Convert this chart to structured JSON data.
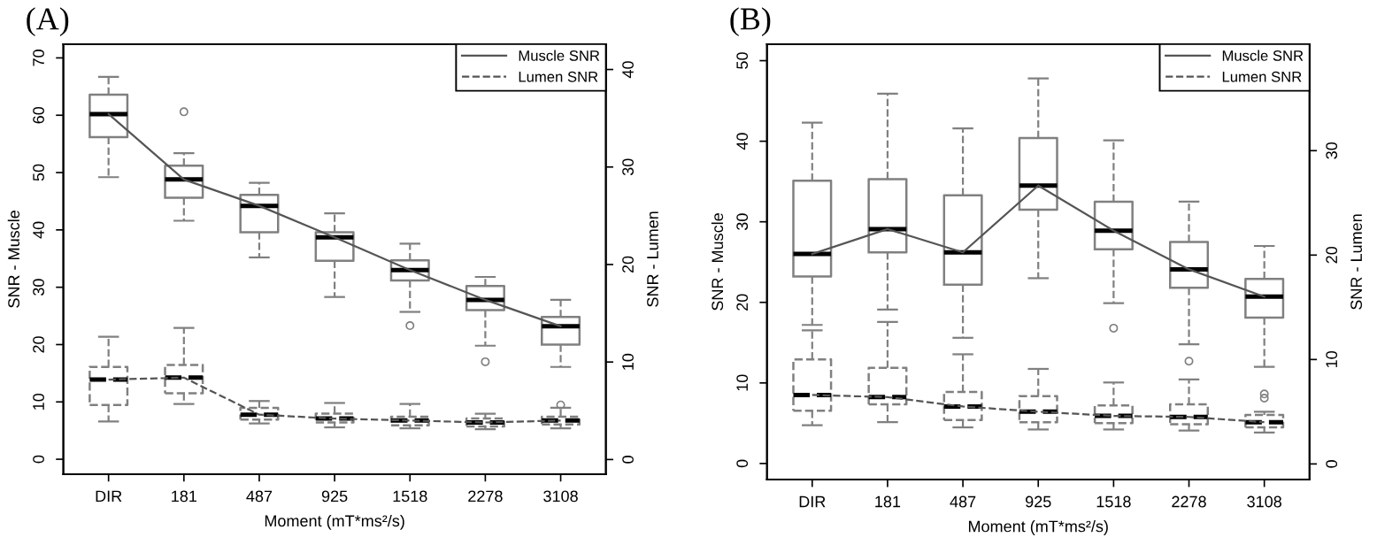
{
  "chart_data": [
    {
      "type": "box",
      "title": "(A)",
      "xlabel": "Moment (mT*ms²/s)",
      "ylabel": "SNR - Muscle",
      "y2label": "SNR - Lumen",
      "categories": [
        "DIR",
        "181",
        "487",
        "925",
        "1518",
        "2278",
        "3108"
      ],
      "ylim": [
        -2.6,
        72.4
      ],
      "yticks": [
        0,
        10,
        20,
        30,
        40,
        50,
        60,
        70
      ],
      "y2lim": [
        -1.5,
        42.6
      ],
      "y2ticks": [
        0,
        10,
        20,
        30,
        40
      ],
      "legend": "top right",
      "grid": false,
      "series": [
        {
          "color": "#808080",
          "line_style": "solid",
          "boxes": [
            {
              "low": 49.2,
              "q1": 56.2,
              "median": 60.2,
              "q3": 63.6,
              "high": 66.7
            },
            {
              "low": 41.6,
              "q1": 45.6,
              "median": 48.8,
              "q3": 51.2,
              "high": 53.4,
              "outliers": [
                60.6
              ]
            },
            {
              "low": 35.2,
              "q1": 39.6,
              "median": 44.2,
              "q3": 46.1,
              "high": 48.2
            },
            {
              "low": 28.3,
              "q1": 34.6,
              "median": 38.7,
              "q3": 39.6,
              "high": 42.9
            },
            {
              "low": 25.7,
              "q1": 31.2,
              "median": 33.0,
              "q3": 34.7,
              "high": 37.6,
              "outliers": [
                23.3
              ]
            },
            {
              "low": 19.8,
              "q1": 26.0,
              "median": 27.8,
              "q3": 30.2,
              "high": 31.8,
              "outliers": [
                17.0
              ]
            },
            {
              "low": 16.1,
              "q1": 20.0,
              "median": 23.2,
              "q3": 24.8,
              "high": 27.8
            }
          ]
        },
        {
          "axis": "y2",
          "color": "#808080",
          "line_style": "dashed",
          "boxes": [
            {
              "low": 3.9,
              "q1": 5.6,
              "median": 8.2,
              "q3": 9.5,
              "high": 12.6
            },
            {
              "low": 5.7,
              "q1": 6.8,
              "median": 8.4,
              "q3": 9.7,
              "high": 13.5
            },
            {
              "low": 3.7,
              "q1": 4.1,
              "median": 4.6,
              "q3": 5.3,
              "high": 6.0
            },
            {
              "low": 3.3,
              "q1": 3.8,
              "median": 4.2,
              "q3": 4.7,
              "high": 5.8
            },
            {
              "low": 3.2,
              "q1": 3.5,
              "median": 4.0,
              "q3": 4.4,
              "high": 5.7
            },
            {
              "low": 3.1,
              "q1": 3.4,
              "median": 3.8,
              "q3": 4.2,
              "high": 4.7
            },
            {
              "low": 3.2,
              "q1": 3.6,
              "median": 4.0,
              "q3": 4.4,
              "high": 5.3,
              "outliers": [
                5.6
              ]
            }
          ]
        },
        {
          "type": "line",
          "name": "Muscle SNR",
          "color": "#555555",
          "line_style": "solid",
          "marker": "none",
          "values": [
            60.2,
            48.8,
            44.2,
            38.7,
            33.0,
            27.8,
            23.2
          ]
        },
        {
          "type": "line",
          "name": "Lumen SNR",
          "axis": "y2",
          "color": "#555555",
          "line_style": "dashed",
          "marker": "none",
          "values": [
            8.2,
            8.4,
            4.6,
            4.2,
            4.0,
            3.8,
            4.0
          ]
        }
      ]
    },
    {
      "type": "box",
      "title": "(B)",
      "xlabel": "Moment (mT*ms²/s)",
      "ylabel": "SNR - Muscle",
      "y2label": "SNR - Lumen",
      "categories": [
        "DIR",
        "181",
        "487",
        "925",
        "1518",
        "2278",
        "3108"
      ],
      "ylim": [
        -2.0,
        52.05
      ],
      "yticks": [
        0,
        10,
        20,
        30,
        40,
        50
      ],
      "y2lim": [
        -1.5,
        40.2
      ],
      "y2ticks": [
        0,
        10,
        20,
        30
      ],
      "legend": "top right",
      "grid": false,
      "series": [
        {
          "color": "#808080",
          "line_style": "solid",
          "boxes": [
            {
              "low": 17.2,
              "q1": 23.2,
              "median": 26.0,
              "q3": 35.1,
              "high": 42.3
            },
            {
              "low": 19.1,
              "q1": 26.2,
              "median": 29.1,
              "q3": 35.3,
              "high": 45.9
            },
            {
              "low": 15.6,
              "q1": 22.2,
              "median": 26.2,
              "q3": 33.3,
              "high": 41.6
            },
            {
              "low": 23.0,
              "q1": 31.5,
              "median": 34.5,
              "q3": 40.4,
              "high": 47.8
            },
            {
              "low": 19.9,
              "q1": 26.6,
              "median": 28.9,
              "q3": 32.5,
              "high": 40.1,
              "outliers": [
                16.8
              ]
            },
            {
              "low": 14.8,
              "q1": 21.8,
              "median": 24.1,
              "q3": 27.5,
              "high": 32.5,
              "outliers": [
                12.7
              ]
            },
            {
              "low": 12.0,
              "q1": 18.1,
              "median": 20.7,
              "q3": 22.9,
              "high": 27.0
            }
          ]
        },
        {
          "axis": "y2",
          "color": "#808080",
          "line_style": "dashed",
          "boxes": [
            {
              "low": 3.7,
              "q1": 5.1,
              "median": 6.6,
              "q3": 10.0,
              "high": 12.8
            },
            {
              "low": 4.0,
              "q1": 5.7,
              "median": 6.4,
              "q3": 9.2,
              "high": 13.6
            },
            {
              "low": 3.5,
              "q1": 4.2,
              "median": 5.5,
              "q3": 6.9,
              "high": 10.5
            },
            {
              "low": 3.3,
              "q1": 4.0,
              "median": 5.0,
              "q3": 6.5,
              "high": 9.1
            },
            {
              "low": 3.3,
              "q1": 3.9,
              "median": 4.6,
              "q3": 5.6,
              "high": 7.8
            },
            {
              "low": 3.2,
              "q1": 3.8,
              "median": 4.5,
              "q3": 5.7,
              "high": 8.1
            },
            {
              "low": 3.0,
              "q1": 3.5,
              "median": 4.0,
              "q3": 4.7,
              "high": 5.0,
              "outliers": [
                6.3,
                6.7
              ]
            }
          ]
        },
        {
          "type": "line",
          "name": "Muscle SNR",
          "color": "#555555",
          "line_style": "solid",
          "marker": "none",
          "values": [
            26.0,
            29.1,
            26.2,
            34.5,
            28.9,
            24.1,
            20.7
          ]
        },
        {
          "type": "line",
          "name": "Lumen SNR",
          "axis": "y2",
          "color": "#555555",
          "line_style": "dashed",
          "marker": "none",
          "values": [
            6.6,
            6.4,
            5.5,
            5.0,
            4.6,
            4.5,
            4.0
          ]
        }
      ]
    }
  ]
}
